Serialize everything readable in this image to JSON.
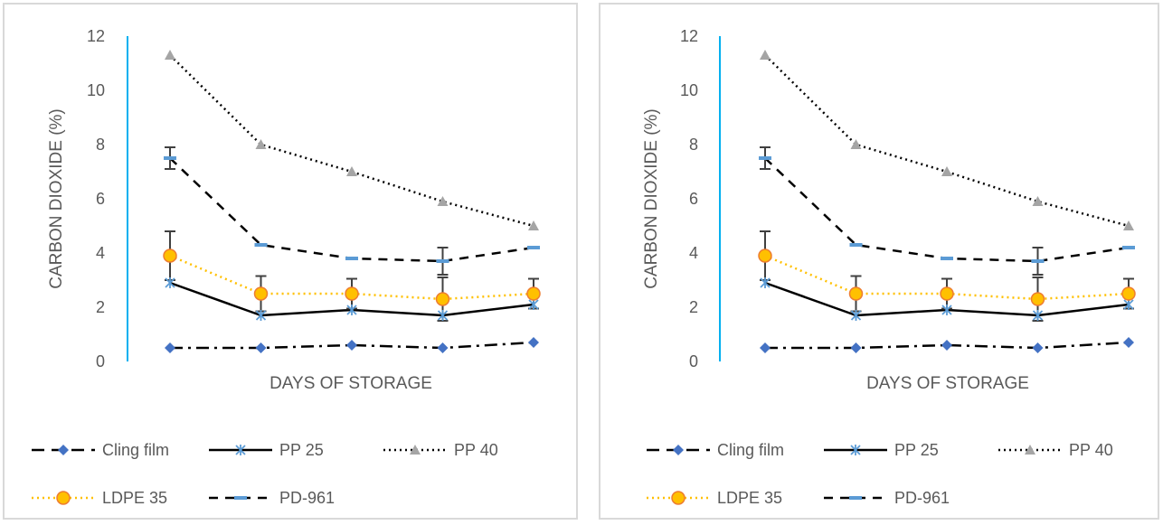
{
  "chart_data": [
    {
      "type": "line",
      "xlabel": "DAYS OF STORAGE",
      "ylabel": "CARBON DIOXIDE (%)",
      "ylim": [
        0,
        12
      ],
      "yticks": [
        0,
        2,
        4,
        6,
        8,
        10,
        12
      ],
      "x": [
        1,
        2,
        3,
        4,
        5
      ],
      "grid": false,
      "legend_position": "bottom",
      "series": [
        {
          "name": "Cling film",
          "values": [
            0.5,
            0.5,
            0.6,
            0.5,
            0.7
          ],
          "color": "#000000",
          "dash": "long-dash-dot",
          "marker": "diamond",
          "marker_color": "#4472c4",
          "errors": [
            0,
            0,
            0,
            0,
            0
          ]
        },
        {
          "name": "PP 25",
          "values": [
            2.9,
            1.7,
            1.9,
            1.7,
            2.1
          ],
          "color": "#000000",
          "dash": "solid",
          "marker": "star",
          "marker_color": "#5b9bd5",
          "errors": [
            0,
            0,
            0,
            0,
            0
          ]
        },
        {
          "name": "PP 40",
          "values": [
            11.3,
            8.0,
            7.0,
            5.9,
            5.0
          ],
          "color": "#000000",
          "dash": "dotted",
          "marker": "triangle",
          "marker_color": "#a5a5a5",
          "errors": [
            0,
            0,
            0,
            0,
            0
          ]
        },
        {
          "name": "LDPE 35",
          "values": [
            3.9,
            2.5,
            2.5,
            2.3,
            2.5
          ],
          "color": "#ffc000",
          "dash": "dotted",
          "marker": "circle",
          "marker_color": "#ffc000",
          "errors": [
            0.9,
            0.65,
            0.55,
            0.8,
            0.55
          ]
        },
        {
          "name": "PD-961",
          "values": [
            7.5,
            4.3,
            3.8,
            3.7,
            4.2
          ],
          "color": "#000000",
          "dash": "dashed",
          "marker": "dash",
          "marker_color": "#5b9bd5",
          "errors": [
            0.4,
            0,
            0,
            0.5,
            0
          ]
        }
      ]
    },
    {
      "type": "line",
      "xlabel": "DAYS OF STORAGE",
      "ylabel": "CARBON DIOXIDE (%)",
      "ylim": [
        0,
        12
      ],
      "yticks": [
        0,
        2,
        4,
        6,
        8,
        10,
        12
      ],
      "x": [
        1,
        2,
        3,
        4,
        5
      ],
      "grid": false,
      "legend_position": "bottom",
      "series": [
        {
          "name": "Cling film",
          "values": [
            0.5,
            0.5,
            0.6,
            0.5,
            0.7
          ],
          "color": "#000000",
          "dash": "long-dash-dot",
          "marker": "diamond",
          "marker_color": "#4472c4",
          "errors": [
            0,
            0,
            0,
            0,
            0
          ]
        },
        {
          "name": "PP 25",
          "values": [
            2.9,
            1.7,
            1.9,
            1.7,
            2.1
          ],
          "color": "#000000",
          "dash": "solid",
          "marker": "star",
          "marker_color": "#5b9bd5",
          "errors": [
            0,
            0,
            0,
            0,
            0
          ]
        },
        {
          "name": "PP 40",
          "values": [
            11.3,
            8.0,
            7.0,
            5.9,
            5.0
          ],
          "color": "#000000",
          "dash": "dotted",
          "marker": "triangle",
          "marker_color": "#a5a5a5",
          "errors": [
            0,
            0,
            0,
            0,
            0
          ]
        },
        {
          "name": "LDPE 35",
          "values": [
            3.9,
            2.5,
            2.5,
            2.3,
            2.5
          ],
          "color": "#ffc000",
          "dash": "dotted",
          "marker": "circle",
          "marker_color": "#ffc000",
          "errors": [
            0.9,
            0.65,
            0.55,
            0.8,
            0.55
          ]
        },
        {
          "name": "PD-961",
          "values": [
            7.5,
            4.3,
            3.8,
            3.7,
            4.2
          ],
          "color": "#000000",
          "dash": "dashed",
          "marker": "dash",
          "marker_color": "#5b9bd5",
          "errors": [
            0.4,
            0,
            0,
            0.5,
            0
          ]
        }
      ]
    }
  ],
  "axis_color": "#00b0f0"
}
